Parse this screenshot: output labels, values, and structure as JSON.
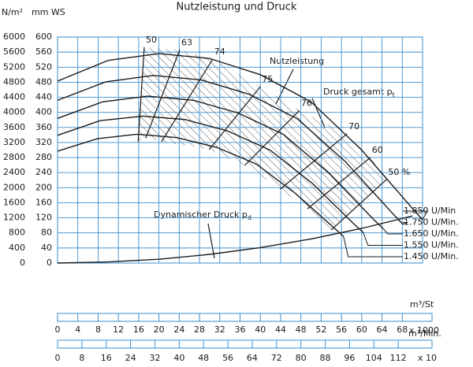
{
  "chart_data": {
    "type": "line",
    "title": "Nutzleistung und Druck",
    "y_unit": "mm WS",
    "y2_unit": "N/m²",
    "xlim": [
      0,
      72
    ],
    "xticks": [
      0,
      4,
      8,
      12,
      16,
      20,
      24,
      28,
      32,
      36,
      40,
      44,
      48,
      52,
      56,
      60,
      64,
      68
    ],
    "x_unit": "m³/St",
    "x_multiplier": "x 1000",
    "x2lim": [
      0,
      120
    ],
    "x2ticks": [
      0,
      8,
      16,
      24,
      32,
      40,
      48,
      56,
      64,
      72,
      80,
      88,
      96,
      104,
      112
    ],
    "x2_unit": "m³/Min.",
    "x2_multiplier": "x 10",
    "ylim": [
      0,
      600
    ],
    "yticks": [
      0,
      40,
      80,
      120,
      160,
      200,
      240,
      280,
      320,
      360,
      400,
      440,
      480,
      520,
      560,
      600
    ],
    "y2lim": [
      0,
      6000
    ],
    "y2ticks": [
      0,
      400,
      800,
      1200,
      1600,
      2000,
      2400,
      2800,
      3200,
      3600,
      4000,
      4400,
      4800,
      5200,
      5600,
      6000
    ],
    "grid": true,
    "series": [
      {
        "name": "1.850 U/Min",
        "color": "#1a1a1a",
        "x": [
          0,
          10,
          20,
          30,
          40,
          50,
          60,
          70,
          72
        ],
        "values": [
          483,
          538,
          556,
          543,
          500,
          428,
          300,
          145,
          115
        ]
      },
      {
        "name": "1.750 U/Min.",
        "color": "#1a1a1a",
        "x": [
          0,
          9.5,
          18.9,
          28.4,
          37.8,
          47.3,
          56.8,
          66.2,
          68.1
        ],
        "values": [
          432,
          481,
          498,
          486,
          448,
          383,
          269,
          130,
          103
        ]
      },
      {
        "name": "1.650 U/Min.",
        "color": "#1a1a1a",
        "x": [
          0,
          8.9,
          17.8,
          26.8,
          35.7,
          44.6,
          53.5,
          62.4,
          64.2
        ],
        "values": [
          384,
          428,
          443,
          432,
          398,
          341,
          239,
          115,
          92
        ]
      },
      {
        "name": "1.550 U/Min.",
        "color": "#1a1a1a",
        "x": [
          0,
          8.4,
          16.8,
          25.1,
          33.5,
          41.9,
          50.3,
          58.6,
          60.3
        ],
        "values": [
          339,
          378,
          390,
          381,
          351,
          300,
          211,
          102,
          81
        ]
      },
      {
        "name": "1.450 U/Min.",
        "color": "#1a1a1a",
        "x": [
          0,
          7.8,
          15.7,
          23.5,
          31.4,
          39.2,
          47.0,
          54.9,
          56.4
        ],
        "values": [
          297,
          330,
          342,
          333,
          307,
          263,
          184,
          89,
          71
        ]
      }
    ],
    "dynamic_pressure": {
      "color": "#1a1a1a",
      "x": [
        0,
        10,
        20,
        30,
        40,
        50,
        60,
        70
      ],
      "values": [
        0,
        3,
        10,
        23,
        41,
        64,
        92,
        125
      ]
    },
    "efficiency_lines": [
      {
        "label": "50",
        "x": [
          17.1,
          15.9
        ],
        "y": [
          573,
          322
        ]
      },
      {
        "label": "63",
        "x": [
          24.1,
          17.4
        ],
        "y": [
          566,
          332
        ]
      },
      {
        "label": "74",
        "x": [
          30.6,
          20.5
        ],
        "y": [
          541,
          322
        ]
      },
      {
        "label": "75",
        "x": [
          40.0,
          29.9
        ],
        "y": [
          468,
          301
        ]
      },
      {
        "label": "76",
        "x": [
          47.7,
          36.9
        ],
        "y": [
          405,
          259
        ]
      },
      {
        "label": "70",
        "x": [
          57.1,
          43.9
        ],
        "y": [
          343,
          196
        ]
      },
      {
        "label": "60",
        "x": [
          61.7,
          49.3
        ],
        "y": [
          280,
          144
        ]
      },
      {
        "label": "50 %",
        "x": [
          64.9,
          54.0
        ],
        "y": [
          222,
          88
        ]
      }
    ],
    "annotations": {
      "power": "Nutzleistung",
      "total_pressure": {
        "text": "Druck gesamt p",
        "sub": "t"
      },
      "dynamic_pressure": {
        "text": "Dynamischer Druck p",
        "sub": "d"
      }
    }
  }
}
